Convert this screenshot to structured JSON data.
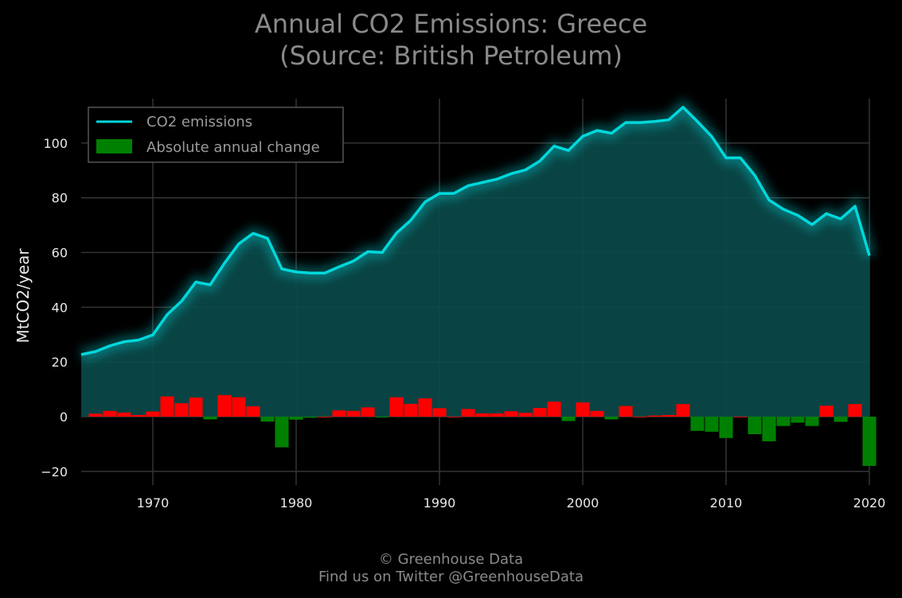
{
  "title": "Annual CO2 Emissions: Greece",
  "subtitle": "(Source: British Petroleum)",
  "footer": {
    "line1": "© Greenhouse Data",
    "line2": "Find us on Twitter @GreenhouseData"
  },
  "colors": {
    "background": "#000000",
    "line": "#00d8dc",
    "fill": "#0a4a4a",
    "increase": "#ff0000",
    "decrease": "#008000",
    "grid": "#333333"
  },
  "chart_data": {
    "type": "line",
    "title": "Annual CO2 Emissions: Greece",
    "subtitle": "(Source: British Petroleum)",
    "xlabel": "",
    "ylabel": "MtCO2/year",
    "xlim": [
      1965,
      2020
    ],
    "ylim": [
      -25,
      118
    ],
    "grid": true,
    "legend_position": "top-left",
    "x_ticks": [
      1970,
      1980,
      1990,
      2000,
      2010,
      2020
    ],
    "y_ticks": [
      -20,
      0,
      20,
      40,
      60,
      80,
      100
    ],
    "y_tick_labels": [
      "−20",
      "0",
      "20",
      "40",
      "60",
      "80",
      "100"
    ],
    "x": [
      1965,
      1966,
      1967,
      1968,
      1969,
      1970,
      1971,
      1972,
      1973,
      1974,
      1975,
      1976,
      1977,
      1978,
      1979,
      1980,
      1981,
      1982,
      1983,
      1984,
      1985,
      1986,
      1987,
      1988,
      1989,
      1990,
      1991,
      1992,
      1993,
      1994,
      1995,
      1996,
      1997,
      1998,
      1999,
      2000,
      2001,
      2002,
      2003,
      2004,
      2005,
      2006,
      2007,
      2008,
      2009,
      2010,
      2011,
      2012,
      2013,
      2014,
      2015,
      2016,
      2017,
      2018,
      2019,
      2020
    ],
    "series": [
      {
        "name": "CO2 emissions",
        "kind": "line",
        "values": [
          22.7,
          23.8,
          25.9,
          27.4,
          28.0,
          29.9,
          37.3,
          42.2,
          49.2,
          48.2,
          56.1,
          63.2,
          67.0,
          65.2,
          54.0,
          52.9,
          52.5,
          52.5,
          54.8,
          56.9,
          60.3,
          60.0,
          67.1,
          71.8,
          78.5,
          81.6,
          81.6,
          84.4,
          85.6,
          86.8,
          88.8,
          90.2,
          93.4,
          98.9,
          97.3,
          102.5,
          104.6,
          103.6,
          107.5,
          107.5,
          107.9,
          108.5,
          113.1,
          107.9,
          102.4,
          94.6,
          94.6,
          88.2,
          79.2,
          75.8,
          73.6,
          70.2,
          74.2,
          72.3,
          76.9,
          58.9
        ]
      },
      {
        "name": "Absolute annual change",
        "kind": "bar",
        "values": [
          null,
          1.1,
          2.1,
          1.5,
          0.6,
          1.9,
          7.4,
          4.9,
          7.0,
          -1.0,
          7.9,
          7.1,
          3.8,
          -1.8,
          -11.2,
          -1.1,
          -0.4,
          0.0,
          2.3,
          2.1,
          3.4,
          -0.3,
          7.1,
          4.7,
          6.7,
          3.1,
          0.0,
          2.8,
          1.2,
          1.2,
          2.0,
          1.4,
          3.2,
          5.5,
          -1.6,
          5.2,
          2.1,
          -1.0,
          3.9,
          0.0,
          0.4,
          0.6,
          4.6,
          -5.2,
          -5.5,
          -7.8,
          0.0,
          -6.4,
          -9.0,
          -3.4,
          -2.2,
          -3.4,
          4.0,
          -1.9,
          4.6,
          -18.0
        ]
      }
    ]
  }
}
